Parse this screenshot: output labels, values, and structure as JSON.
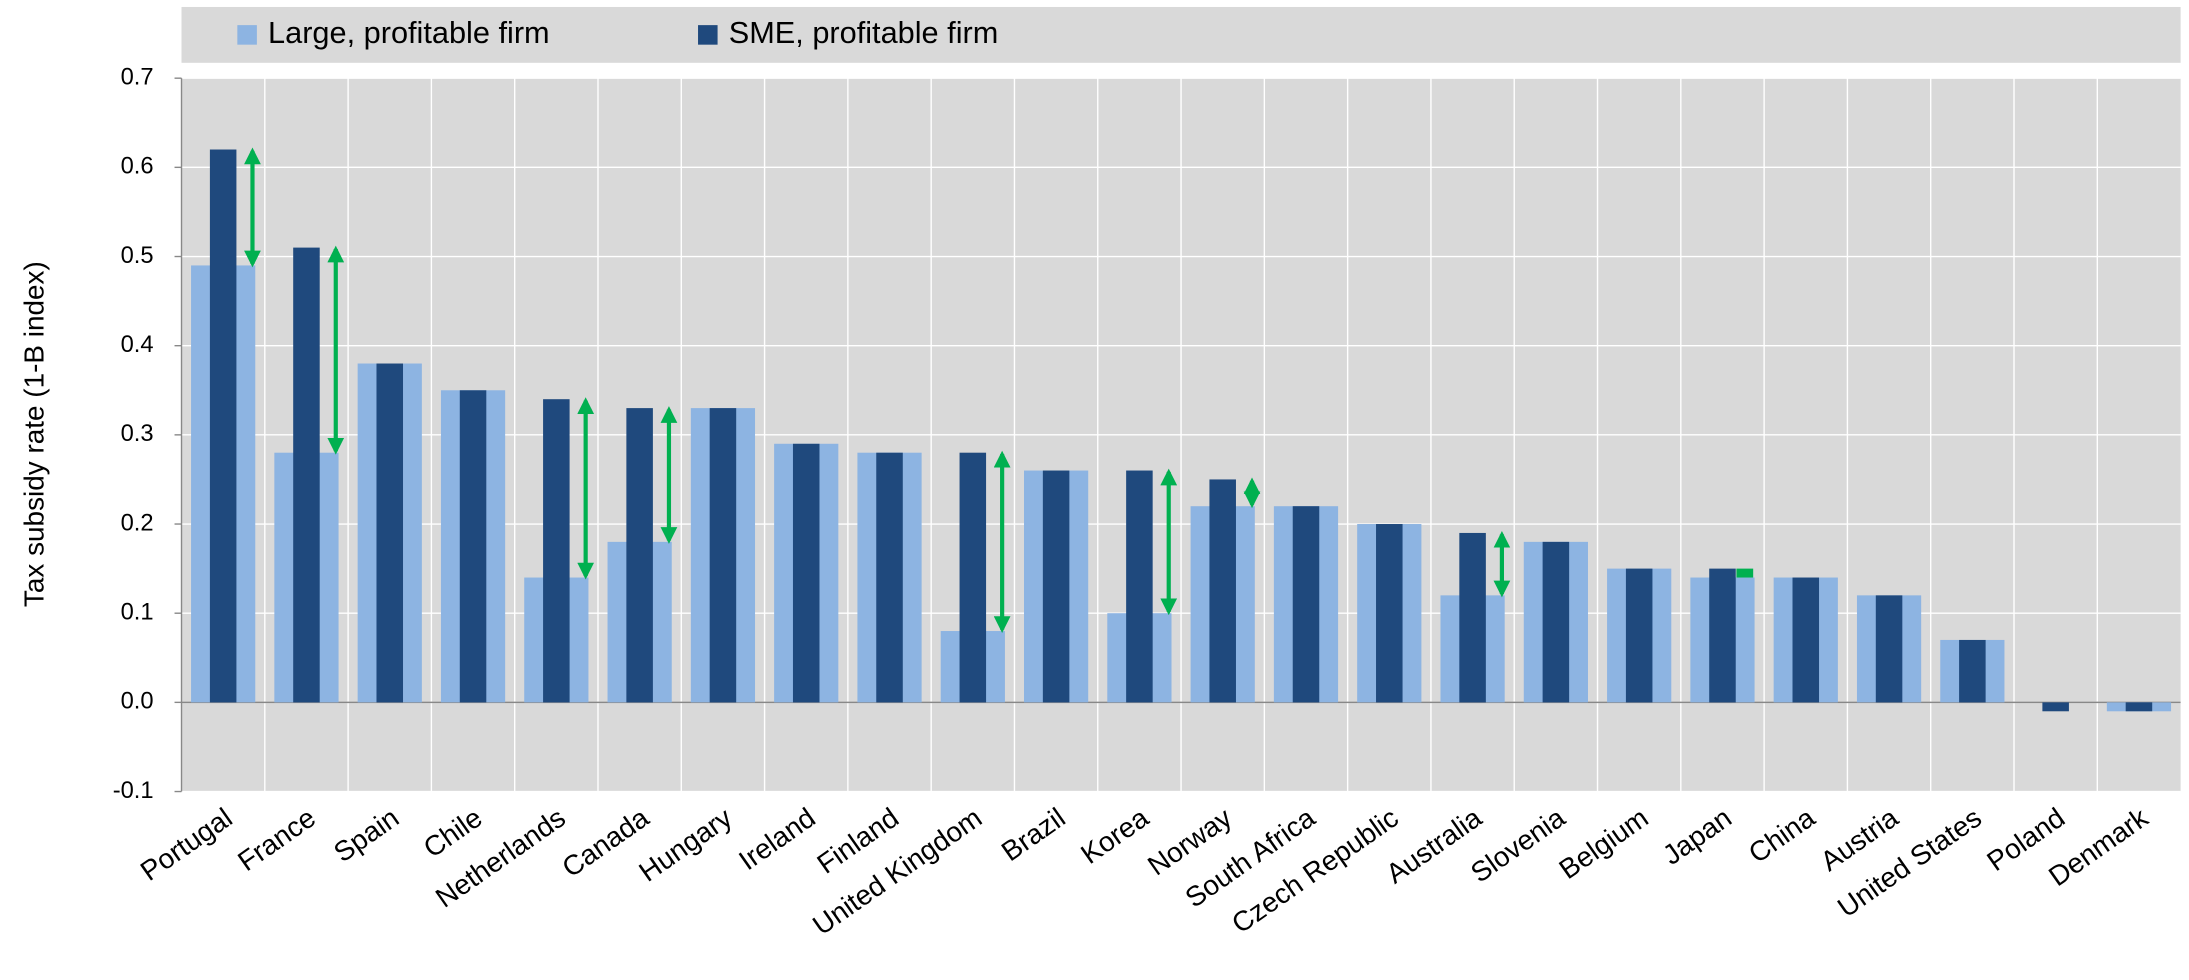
{
  "chart_data": {
    "type": "bar",
    "y_label": "Tax subsidy rate (1-B index)",
    "categories": [
      "Portugal",
      "France",
      "Spain",
      "Chile",
      "Netherlands",
      "Canada",
      "Hungary",
      "Ireland",
      "Finland",
      "United Kingdom",
      "Brazil",
      "Korea",
      "Norway",
      "South Africa",
      "Czech Republic",
      "Australia",
      "Slovenia",
      "Belgium",
      "Japan",
      "China",
      "Austria",
      "United States",
      "Poland",
      "Denmark"
    ],
    "series": [
      {
        "name": "Large, profitable firm",
        "color": "#8db4e2",
        "values": [
          0.49,
          0.28,
          0.38,
          0.35,
          0.14,
          0.18,
          0.33,
          0.29,
          0.28,
          0.08,
          0.26,
          0.1,
          0.22,
          0.22,
          0.2,
          0.12,
          0.18,
          0.15,
          0.14,
          0.14,
          0.12,
          0.07,
          0,
          -0.01
        ]
      },
      {
        "name": "SME, profitable firm",
        "color": "#1f497d",
        "values": [
          0.62,
          0.51,
          0.38,
          0.35,
          0.34,
          0.33,
          0.33,
          0.29,
          0.28,
          0.28,
          0.26,
          0.26,
          0.25,
          0.22,
          0.2,
          0.19,
          0.18,
          0.15,
          0.15,
          0.14,
          0.12,
          0.07,
          -0.01,
          -0.01
        ]
      }
    ],
    "ylim": [
      -0.1,
      0.7
    ],
    "yticks": [
      {
        "value": -0.1,
        "label": "-0.1"
      },
      {
        "value": 0,
        "label": "0.0"
      },
      {
        "value": 0.1,
        "label": "0.1"
      },
      {
        "value": 0.2,
        "label": "0.2"
      },
      {
        "value": 0.3,
        "label": "0.3"
      },
      {
        "value": 0.4,
        "label": "0.4"
      },
      {
        "value": 0.5,
        "label": "0.5"
      },
      {
        "value": 0.6,
        "label": "0.6"
      },
      {
        "value": 0.7,
        "label": "0.7"
      }
    ],
    "grid": true,
    "arrow_color": "#00b050",
    "legend": "top"
  }
}
